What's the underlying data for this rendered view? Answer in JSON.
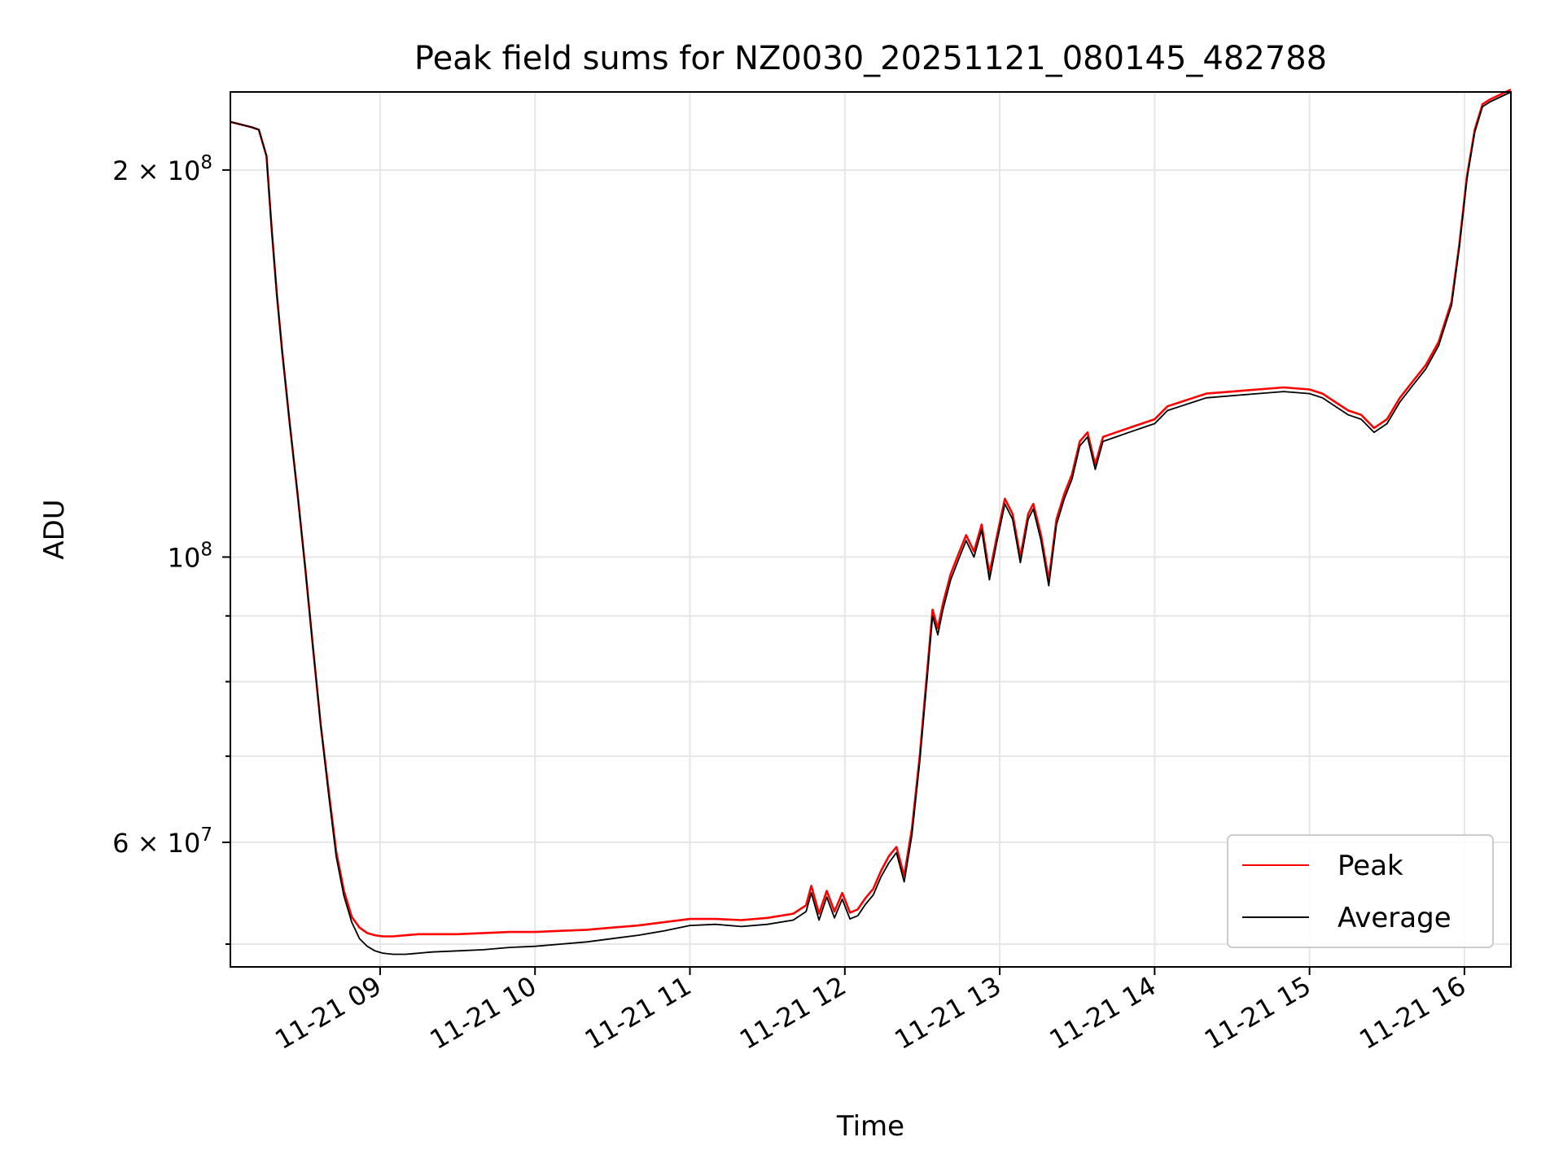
{
  "chart_data": {
    "type": "line",
    "title": "Peak field sums for NZ0030_20251121_080145_482788",
    "xlabel": "Time",
    "ylabel": "ADU",
    "xscale": "time",
    "yscale": "log",
    "xlim": [
      "2025-11-21 08:02",
      "2025-11-21 16:18"
    ],
    "ylim": [
      48000000,
      230000000
    ],
    "grid": true,
    "legend_position": "lower right",
    "x_ticks": [
      "11-21 09",
      "11-21 10",
      "11-21 11",
      "11-21 12",
      "11-21 13",
      "11-21 14",
      "11-21 15",
      "11-21 16"
    ],
    "y_ticks": [
      {
        "value": 60000000,
        "label_base": "6 × 10",
        "label_exp": "7"
      },
      {
        "value": 100000000,
        "label_base": "10",
        "label_exp": "8"
      },
      {
        "value": 200000000,
        "label_base": "2 × 10",
        "label_exp": "8"
      }
    ],
    "y_minor_ticks": [
      50000000,
      70000000,
      80000000,
      90000000
    ],
    "series": [
      {
        "name": "Peak",
        "color": "#ff0000",
        "x": [
          "08:02",
          "08:10",
          "08:13",
          "08:16",
          "08:18",
          "08:20",
          "08:22",
          "08:25",
          "08:28",
          "08:31",
          "08:34",
          "08:37",
          "08:40",
          "08:43",
          "08:46",
          "08:49",
          "08:52",
          "08:55",
          "08:58",
          "09:01",
          "09:05",
          "09:10",
          "09:15",
          "09:20",
          "09:30",
          "09:40",
          "09:50",
          "10:00",
          "10:10",
          "10:20",
          "10:30",
          "10:40",
          "10:50",
          "11:00",
          "11:10",
          "11:20",
          "11:30",
          "11:40",
          "11:45",
          "11:47",
          "11:50",
          "11:53",
          "11:56",
          "11:59",
          "12:02",
          "12:05",
          "12:08",
          "12:11",
          "12:14",
          "12:17",
          "12:20",
          "12:23",
          "12:26",
          "12:29",
          "12:32",
          "12:34",
          "12:36",
          "12:38",
          "12:41",
          "12:44",
          "12:47",
          "12:50",
          "12:53",
          "12:56",
          "12:59",
          "13:02",
          "13:05",
          "13:08",
          "13:11",
          "13:13",
          "13:16",
          "13:19",
          "13:22",
          "13:25",
          "13:28",
          "13:31",
          "13:34",
          "13:37",
          "13:40",
          "13:45",
          "13:50",
          "13:55",
          "14:00",
          "14:05",
          "14:10",
          "14:15",
          "14:20",
          "14:30",
          "14:40",
          "14:50",
          "15:00",
          "15:05",
          "15:10",
          "15:15",
          "15:20",
          "15:25",
          "15:30",
          "15:35",
          "15:40",
          "15:45",
          "15:50",
          "15:55",
          "15:58",
          "16:01",
          "16:04",
          "16:07",
          "16:10",
          "16:14",
          "16:18"
        ],
        "values": [
          218000000,
          216000000,
          215000000,
          205000000,
          180000000,
          160000000,
          145000000,
          127000000,
          112000000,
          98000000,
          85000000,
          74000000,
          66000000,
          59000000,
          55000000,
          52500000,
          51500000,
          51000000,
          50800000,
          50700000,
          50700000,
          50800000,
          50900000,
          50900000,
          50900000,
          51000000,
          51100000,
          51100000,
          51200000,
          51300000,
          51500000,
          51700000,
          52000000,
          52300000,
          52300000,
          52200000,
          52400000,
          52800000,
          53600000,
          55500000,
          52800000,
          55000000,
          53000000,
          54800000,
          52900000,
          53200000,
          54300000,
          55200000,
          57000000,
          58500000,
          59500000,
          56500000,
          61500000,
          70000000,
          82000000,
          91000000,
          88000000,
          92000000,
          97000000,
          100500000,
          104000000,
          101000000,
          106000000,
          97000000,
          104000000,
          111000000,
          108000000,
          100000000,
          108000000,
          110000000,
          104000000,
          96000000,
          107000000,
          112000000,
          116000000,
          123000000,
          125000000,
          118000000,
          124000000,
          125000000,
          126000000,
          127000000,
          128000000,
          131000000,
          132000000,
          133000000,
          134000000,
          134500000,
          135000000,
          135500000,
          135000000,
          134000000,
          132000000,
          130000000,
          129000000,
          126000000,
          128000000,
          133000000,
          137000000,
          141000000,
          147000000,
          158000000,
          175000000,
          198000000,
          215000000,
          225000000,
          227000000,
          229000000,
          231000000
        ]
      },
      {
        "name": "Average",
        "color": "#000000",
        "x": [
          "08:02",
          "08:10",
          "08:13",
          "08:16",
          "08:18",
          "08:20",
          "08:22",
          "08:25",
          "08:28",
          "08:31",
          "08:34",
          "08:37",
          "08:40",
          "08:43",
          "08:46",
          "08:49",
          "08:52",
          "08:55",
          "08:58",
          "09:01",
          "09:05",
          "09:10",
          "09:15",
          "09:20",
          "09:30",
          "09:40",
          "09:50",
          "10:00",
          "10:10",
          "10:20",
          "10:30",
          "10:40",
          "10:50",
          "11:00",
          "11:10",
          "11:20",
          "11:30",
          "11:40",
          "11:45",
          "11:47",
          "11:50",
          "11:53",
          "11:56",
          "11:59",
          "12:02",
          "12:05",
          "12:08",
          "12:11",
          "12:14",
          "12:17",
          "12:20",
          "12:23",
          "12:26",
          "12:29",
          "12:32",
          "12:34",
          "12:36",
          "12:38",
          "12:41",
          "12:44",
          "12:47",
          "12:50",
          "12:53",
          "12:56",
          "12:59",
          "13:02",
          "13:05",
          "13:08",
          "13:11",
          "13:13",
          "13:16",
          "13:19",
          "13:22",
          "13:25",
          "13:28",
          "13:31",
          "13:34",
          "13:37",
          "13:40",
          "13:45",
          "13:50",
          "13:55",
          "14:00",
          "14:05",
          "14:10",
          "14:15",
          "14:20",
          "14:30",
          "14:40",
          "14:50",
          "15:00",
          "15:05",
          "15:10",
          "15:15",
          "15:20",
          "15:25",
          "15:30",
          "15:35",
          "15:40",
          "15:45",
          "15:50",
          "15:55",
          "15:58",
          "16:01",
          "16:04",
          "16:07",
          "16:10",
          "16:14",
          "16:18"
        ],
        "values": [
          218000000,
          216000000,
          215000000,
          205000000,
          180000000,
          160000000,
          145000000,
          127000000,
          112000000,
          98000000,
          85000000,
          74000000,
          65500000,
          58500000,
          54500000,
          52000000,
          50500000,
          49800000,
          49400000,
          49200000,
          49100000,
          49100000,
          49200000,
          49300000,
          49400000,
          49500000,
          49700000,
          49800000,
          50000000,
          50200000,
          50500000,
          50800000,
          51200000,
          51700000,
          51800000,
          51600000,
          51800000,
          52200000,
          53000000,
          54800000,
          52200000,
          54400000,
          52400000,
          54200000,
          52300000,
          52600000,
          53700000,
          54600000,
          56400000,
          57800000,
          58900000,
          55900000,
          60800000,
          69300000,
          81000000,
          90000000,
          87000000,
          91000000,
          96000000,
          99500000,
          103000000,
          100000000,
          105000000,
          96000000,
          103000000,
          110000000,
          107000000,
          99000000,
          107000000,
          109000000,
          103000000,
          95000000,
          106000000,
          111000000,
          115000000,
          122000000,
          124000000,
          117000000,
          123000000,
          124000000,
          125000000,
          126000000,
          127000000,
          130000000,
          131000000,
          132000000,
          133000000,
          133500000,
          134000000,
          134500000,
          134000000,
          133000000,
          131000000,
          129000000,
          128000000,
          125000000,
          127000000,
          132000000,
          136000000,
          140000000,
          146000000,
          157000000,
          174000000,
          197000000,
          214000000,
          224000000,
          226000000,
          228000000,
          230000000
        ]
      }
    ]
  }
}
